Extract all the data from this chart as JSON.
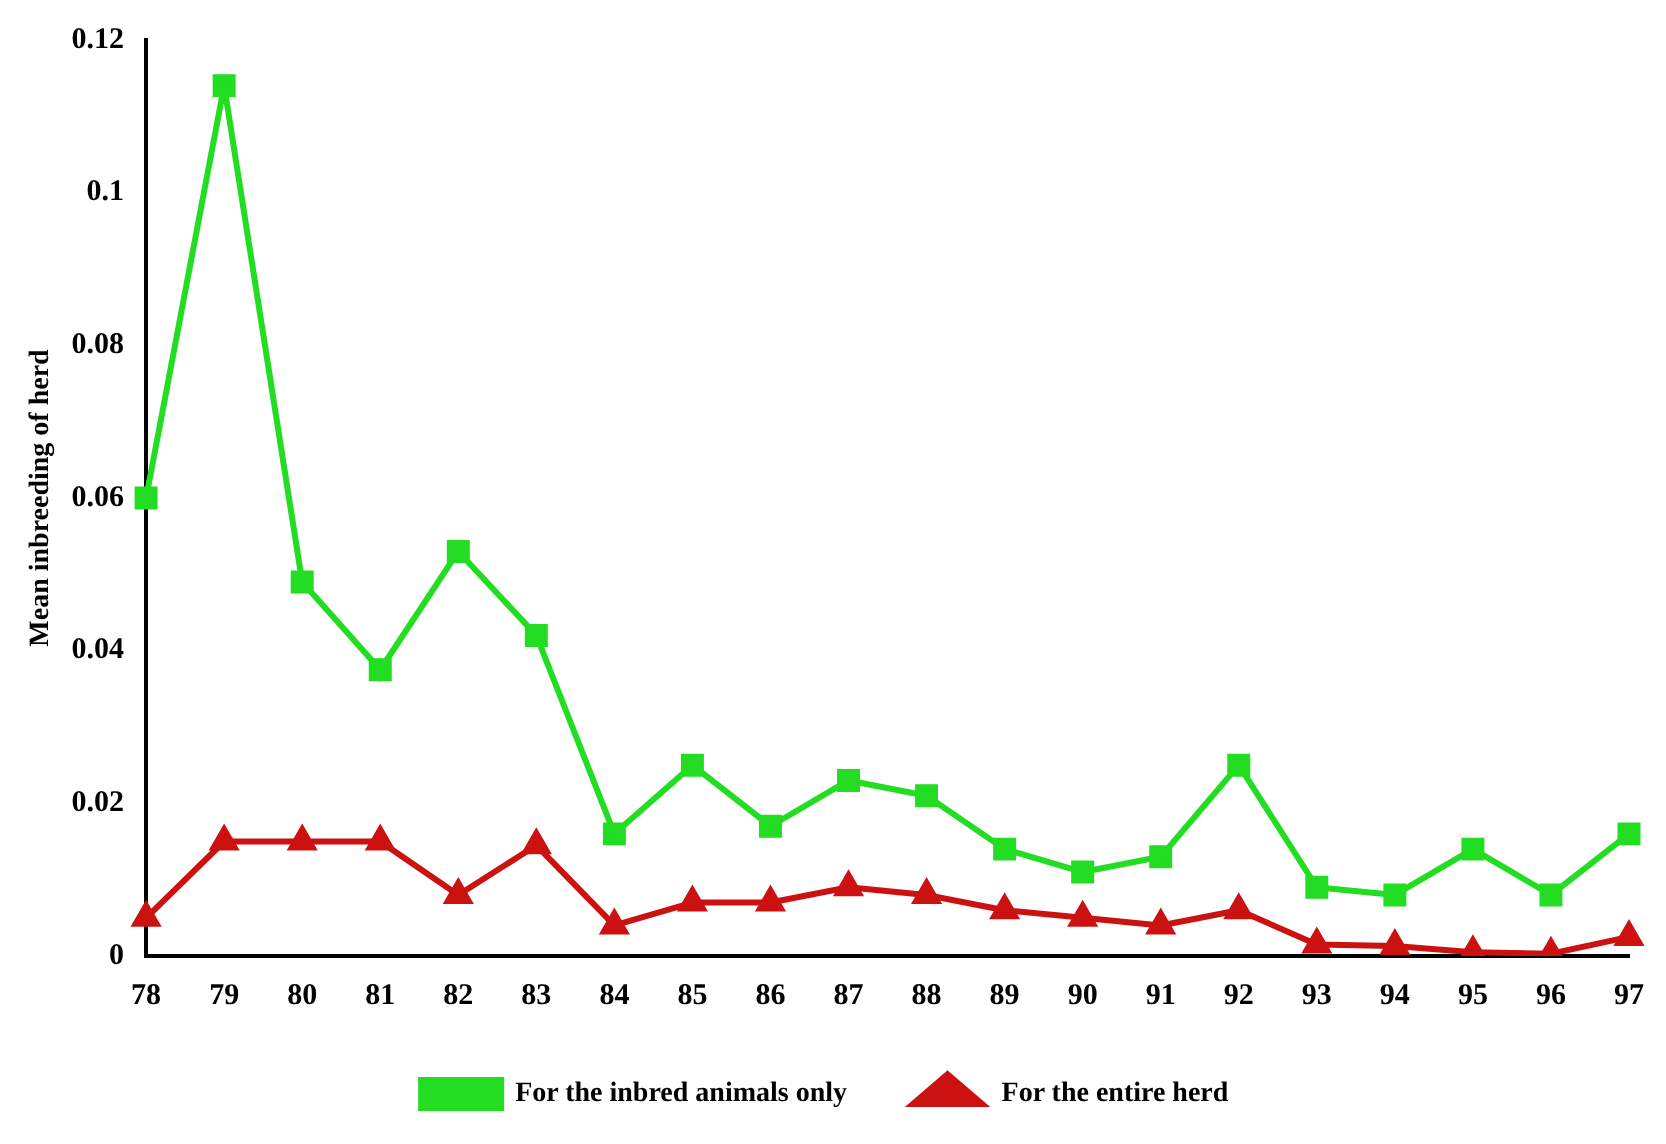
{
  "chart_data": {
    "type": "line",
    "ylabel": "Mean inbreeding of herd",
    "categories": [
      "78",
      "79",
      "80",
      "81",
      "82",
      "83",
      "84",
      "85",
      "86",
      "87",
      "88",
      "89",
      "90",
      "91",
      "92",
      "93",
      "94",
      "95",
      "96",
      "97"
    ],
    "series": [
      {
        "name": "For the inbred animals only",
        "color": "#22dd22",
        "marker": "square",
        "values": [
          0.06,
          0.114,
          0.049,
          0.0375,
          0.053,
          0.042,
          0.016,
          0.025,
          0.017,
          0.023,
          0.021,
          0.014,
          0.011,
          0.013,
          0.025,
          0.009,
          0.008,
          0.014,
          0.008,
          0.016
        ]
      },
      {
        "name": "For the entire herd",
        "color": "#cc1111",
        "marker": "triangle",
        "values": [
          0.005,
          0.015,
          0.015,
          0.015,
          0.008,
          0.0145,
          0.004,
          0.007,
          0.007,
          0.009,
          0.008,
          0.006,
          0.005,
          0.004,
          0.006,
          0.0015,
          0.0013,
          0.0005,
          0.0003,
          0.0025
        ]
      }
    ],
    "ylim": [
      0,
      0.12
    ],
    "yticks": [
      0,
      0.02,
      0.04,
      0.06,
      0.08,
      0.1,
      0.12
    ],
    "grid": false,
    "legend": "bottom",
    "line_style": "solid"
  }
}
